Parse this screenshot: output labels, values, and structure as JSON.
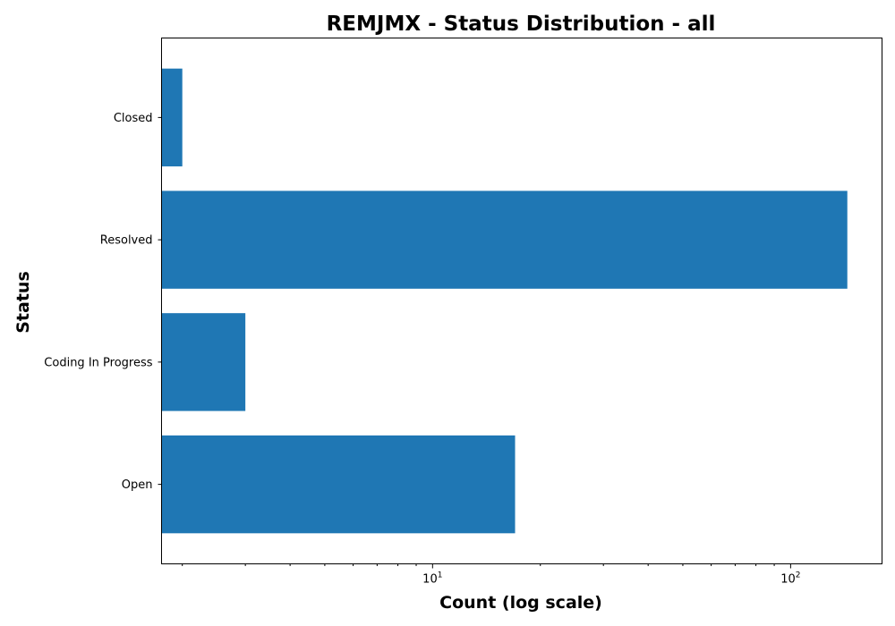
{
  "chart_data": {
    "type": "bar",
    "orientation": "horizontal",
    "title": "REMJMX - Status Distribution - all",
    "xlabel": "Count (log scale)",
    "ylabel": "Status",
    "x_scale": "log",
    "xlim": [
      1.75,
      180
    ],
    "categories": [
      "Open",
      "Coding In Progress",
      "Resolved",
      "Closed"
    ],
    "values": [
      17,
      3,
      144,
      2
    ],
    "x_major_ticks": [
      {
        "base": "10",
        "exp": "1",
        "value": 10
      },
      {
        "base": "10",
        "exp": "2",
        "value": 100
      }
    ],
    "x_minor_ticks": [
      2,
      3,
      4,
      5,
      6,
      7,
      8,
      9,
      20,
      30,
      40,
      50,
      60,
      70,
      80,
      90
    ],
    "bar_color": "#1f77b4",
    "grid": false,
    "legend": "none"
  }
}
